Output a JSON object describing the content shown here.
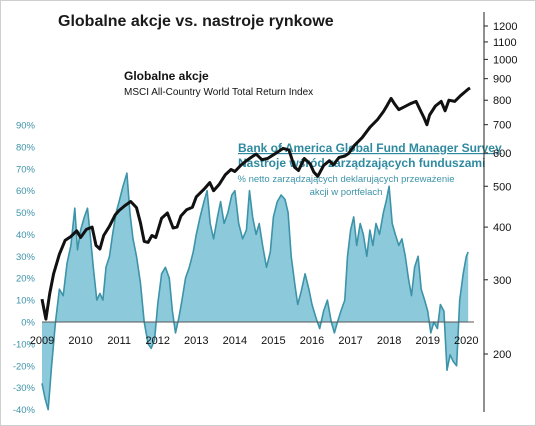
{
  "chart_data": {
    "type": "line+area",
    "title": "Globalne akcje vs. nastroje rynkowe",
    "series": [
      {
        "name": "Globalne akcje",
        "description": "MSCI All-Country World Total Return Index",
        "axis": "right",
        "color": "#111111",
        "points": [
          [
            2009.0,
            270
          ],
          [
            2009.1,
            242
          ],
          [
            2009.2,
            278
          ],
          [
            2009.3,
            310
          ],
          [
            2009.45,
            345
          ],
          [
            2009.6,
            372
          ],
          [
            2009.75,
            380
          ],
          [
            2009.9,
            392
          ],
          [
            2010.0,
            378
          ],
          [
            2010.15,
            395
          ],
          [
            2010.3,
            400
          ],
          [
            2010.4,
            362
          ],
          [
            2010.5,
            355
          ],
          [
            2010.6,
            382
          ],
          [
            2010.75,
            402
          ],
          [
            2010.9,
            428
          ],
          [
            2011.0,
            438
          ],
          [
            2011.15,
            450
          ],
          [
            2011.3,
            460
          ],
          [
            2011.45,
            445
          ],
          [
            2011.55,
            410
          ],
          [
            2011.65,
            370
          ],
          [
            2011.75,
            368
          ],
          [
            2011.85,
            382
          ],
          [
            2011.95,
            378
          ],
          [
            2012.1,
            420
          ],
          [
            2012.25,
            432
          ],
          [
            2012.4,
            398
          ],
          [
            2012.5,
            400
          ],
          [
            2012.6,
            425
          ],
          [
            2012.75,
            440
          ],
          [
            2012.9,
            446
          ],
          [
            2013.0,
            472
          ],
          [
            2013.2,
            492
          ],
          [
            2013.35,
            510
          ],
          [
            2013.45,
            488
          ],
          [
            2013.6,
            506
          ],
          [
            2013.75,
            532
          ],
          [
            2013.9,
            548
          ],
          [
            2014.0,
            542
          ],
          [
            2014.15,
            560
          ],
          [
            2014.3,
            575
          ],
          [
            2014.45,
            588
          ],
          [
            2014.55,
            596
          ],
          [
            2014.7,
            578
          ],
          [
            2014.85,
            582
          ],
          [
            2014.95,
            590
          ],
          [
            2015.1,
            602
          ],
          [
            2015.25,
            615
          ],
          [
            2015.4,
            610
          ],
          [
            2015.55,
            555
          ],
          [
            2015.65,
            545
          ],
          [
            2015.8,
            582
          ],
          [
            2015.95,
            565
          ],
          [
            2016.05,
            540
          ],
          [
            2016.15,
            528
          ],
          [
            2016.3,
            560
          ],
          [
            2016.45,
            575
          ],
          [
            2016.55,
            562
          ],
          [
            2016.7,
            585
          ],
          [
            2016.85,
            590
          ],
          [
            2016.95,
            598
          ],
          [
            2017.1,
            625
          ],
          [
            2017.3,
            652
          ],
          [
            2017.5,
            690
          ],
          [
            2017.7,
            720
          ],
          [
            2017.85,
            752
          ],
          [
            2017.95,
            778
          ],
          [
            2018.05,
            808
          ],
          [
            2018.15,
            782
          ],
          [
            2018.25,
            760
          ],
          [
            2018.4,
            772
          ],
          [
            2018.55,
            785
          ],
          [
            2018.7,
            795
          ],
          [
            2018.8,
            760
          ],
          [
            2018.9,
            728
          ],
          [
            2018.98,
            700
          ],
          [
            2019.05,
            738
          ],
          [
            2019.2,
            775
          ],
          [
            2019.35,
            795
          ],
          [
            2019.45,
            755
          ],
          [
            2019.55,
            800
          ],
          [
            2019.7,
            795
          ],
          [
            2019.85,
            820
          ],
          [
            2019.95,
            835
          ],
          [
            2020.05,
            850
          ],
          [
            2020.1,
            855
          ]
        ]
      },
      {
        "name": "Bank of America Global Fund Manager Survey",
        "subtitle": "Nastroje wśród zarządzających funduszami",
        "description": "% netto zarządzających deklarujących przeważenie akcji w portfelach",
        "axis": "left",
        "color": "#3d93a8",
        "fill": "#8ccadb",
        "points": [
          [
            2009.0,
            -28
          ],
          [
            2009.08,
            -35
          ],
          [
            2009.16,
            -40
          ],
          [
            2009.25,
            -20
          ],
          [
            2009.35,
            0
          ],
          [
            2009.45,
            15
          ],
          [
            2009.55,
            12
          ],
          [
            2009.65,
            27
          ],
          [
            2009.75,
            35
          ],
          [
            2009.85,
            52
          ],
          [
            2009.92,
            33
          ],
          [
            2010.0,
            42
          ],
          [
            2010.1,
            48
          ],
          [
            2010.18,
            52
          ],
          [
            2010.25,
            40
          ],
          [
            2010.33,
            25
          ],
          [
            2010.42,
            10
          ],
          [
            2010.5,
            13
          ],
          [
            2010.58,
            10
          ],
          [
            2010.66,
            25
          ],
          [
            2010.75,
            30
          ],
          [
            2010.83,
            40
          ],
          [
            2010.92,
            50
          ],
          [
            2011.0,
            55
          ],
          [
            2011.1,
            62
          ],
          [
            2011.2,
            68
          ],
          [
            2011.28,
            50
          ],
          [
            2011.36,
            38
          ],
          [
            2011.45,
            30
          ],
          [
            2011.55,
            18
          ],
          [
            2011.65,
            0
          ],
          [
            2011.75,
            -10
          ],
          [
            2011.83,
            -12
          ],
          [
            2011.92,
            -8
          ],
          [
            2012.0,
            8
          ],
          [
            2012.1,
            22
          ],
          [
            2012.2,
            25
          ],
          [
            2012.3,
            20
          ],
          [
            2012.38,
            5
          ],
          [
            2012.46,
            -5
          ],
          [
            2012.55,
            2
          ],
          [
            2012.63,
            10
          ],
          [
            2012.72,
            20
          ],
          [
            2012.82,
            25
          ],
          [
            2012.92,
            32
          ],
          [
            2013.0,
            40
          ],
          [
            2013.1,
            48
          ],
          [
            2013.2,
            55
          ],
          [
            2013.28,
            60
          ],
          [
            2013.36,
            45
          ],
          [
            2013.45,
            38
          ],
          [
            2013.55,
            48
          ],
          [
            2013.63,
            55
          ],
          [
            2013.72,
            45
          ],
          [
            2013.82,
            50
          ],
          [
            2013.92,
            58
          ],
          [
            2014.0,
            60
          ],
          [
            2014.1,
            45
          ],
          [
            2014.2,
            38
          ],
          [
            2014.3,
            42
          ],
          [
            2014.38,
            60
          ],
          [
            2014.46,
            48
          ],
          [
            2014.55,
            40
          ],
          [
            2014.63,
            45
          ],
          [
            2014.72,
            35
          ],
          [
            2014.82,
            25
          ],
          [
            2014.92,
            32
          ],
          [
            2015.0,
            48
          ],
          [
            2015.1,
            55
          ],
          [
            2015.2,
            58
          ],
          [
            2015.3,
            56
          ],
          [
            2015.38,
            50
          ],
          [
            2015.46,
            30
          ],
          [
            2015.55,
            18
          ],
          [
            2015.63,
            8
          ],
          [
            2015.72,
            14
          ],
          [
            2015.82,
            22
          ],
          [
            2015.92,
            15
          ],
          [
            2016.0,
            8
          ],
          [
            2016.1,
            2
          ],
          [
            2016.2,
            -3
          ],
          [
            2016.3,
            5
          ],
          [
            2016.4,
            10
          ],
          [
            2016.5,
            0
          ],
          [
            2016.58,
            -5
          ],
          [
            2016.66,
            0
          ],
          [
            2016.75,
            5
          ],
          [
            2016.85,
            10
          ],
          [
            2016.92,
            30
          ],
          [
            2017.0,
            42
          ],
          [
            2017.08,
            48
          ],
          [
            2017.16,
            35
          ],
          [
            2017.25,
            45
          ],
          [
            2017.33,
            40
          ],
          [
            2017.42,
            30
          ],
          [
            2017.5,
            42
          ],
          [
            2017.58,
            35
          ],
          [
            2017.66,
            45
          ],
          [
            2017.75,
            40
          ],
          [
            2017.85,
            50
          ],
          [
            2017.92,
            55
          ],
          [
            2018.0,
            62
          ],
          [
            2018.08,
            45
          ],
          [
            2018.16,
            40
          ],
          [
            2018.25,
            35
          ],
          [
            2018.33,
            38
          ],
          [
            2018.42,
            30
          ],
          [
            2018.5,
            20
          ],
          [
            2018.58,
            12
          ],
          [
            2018.66,
            25
          ],
          [
            2018.75,
            30
          ],
          [
            2018.83,
            15
          ],
          [
            2018.92,
            10
          ],
          [
            2019.0,
            5
          ],
          [
            2019.08,
            -5
          ],
          [
            2019.16,
            0
          ],
          [
            2019.25,
            -3
          ],
          [
            2019.33,
            8
          ],
          [
            2019.42,
            5
          ],
          [
            2019.5,
            -22
          ],
          [
            2019.58,
            -15
          ],
          [
            2019.66,
            -18
          ],
          [
            2019.75,
            -20
          ],
          [
            2019.83,
            10
          ],
          [
            2019.92,
            22
          ],
          [
            2020.0,
            30
          ],
          [
            2020.05,
            32
          ]
        ]
      }
    ],
    "x": {
      "min": 2009,
      "max": 2020.2,
      "ticks": [
        "2009",
        "2010",
        "2011",
        "2012",
        "2013",
        "2014",
        "2015",
        "2016",
        "2017",
        "2018",
        "2019",
        "2020"
      ]
    },
    "y_left": {
      "min": -40,
      "max": 90,
      "ticks": [
        "90%",
        "80%",
        "70%",
        "60%",
        "50%",
        "40%",
        "30%",
        "20%",
        "10%",
        "0%",
        "-10%",
        "-20%",
        "-30%",
        "-40%"
      ],
      "tick_values": [
        90,
        80,
        70,
        60,
        50,
        40,
        30,
        20,
        10,
        0,
        -10,
        -20,
        -30,
        -40
      ]
    },
    "y_right": {
      "scale": "log",
      "ticks": [
        "1200",
        "1100",
        "1000",
        "900",
        "800",
        "700",
        "600",
        "500",
        "400",
        "300",
        "200"
      ],
      "tick_values": [
        1200,
        1100,
        1000,
        900,
        800,
        700,
        600,
        500,
        400,
        300,
        200
      ]
    },
    "grid": false,
    "legend": "inline labels"
  },
  "colors": {
    "black_line": "#111111",
    "teal_line": "#3d93a8",
    "teal_fill": "#8ccadb"
  }
}
